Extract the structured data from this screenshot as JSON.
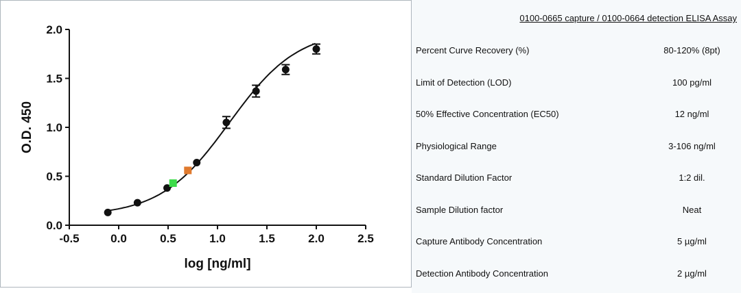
{
  "chart_data": {
    "type": "scatter",
    "xlabel": "log [ng/ml]",
    "ylabel": "O.D. 450",
    "xlim": [
      -0.5,
      2.5
    ],
    "ylim": [
      0.0,
      2.0
    ],
    "xticks": [
      "-0.5",
      "0.0",
      "0.5",
      "1.0",
      "1.5",
      "2.0",
      "2.5"
    ],
    "yticks": [
      "0.0",
      "0.5",
      "1.0",
      "1.5",
      "2.0"
    ],
    "grid": false,
    "series": [
      {
        "marker": "circle",
        "color": "#111111",
        "x": [
          -0.11,
          0.19,
          0.49,
          0.79,
          1.09,
          1.39,
          1.69,
          2.0
        ],
        "y": [
          0.13,
          0.23,
          0.38,
          0.64,
          1.05,
          1.37,
          1.59,
          1.8
        ],
        "err": [
          0.0,
          0.0,
          0.0,
          0.0,
          0.06,
          0.06,
          0.05,
          0.05
        ]
      }
    ],
    "fit_curve": {
      "type": "4PL sigmoid",
      "color": "#111111"
    },
    "highlight_points": [
      {
        "x": 0.55,
        "y": 0.43,
        "color": "#3ddc4a",
        "marker": "square"
      },
      {
        "x": 0.7,
        "y": 0.56,
        "color": "#e07a2e",
        "marker": "square"
      }
    ]
  },
  "table": {
    "title": "0100-0665 capture / 0100-0664 detection ELISA Assay",
    "rows": [
      {
        "label": "Percent Curve Recovery (%)",
        "value": "80-120% (8pt)"
      },
      {
        "label": "Limit of Detection (LOD)",
        "value": "100 pg/ml"
      },
      {
        "label": "50% Effective Concentration (EC50)",
        "value": "12 ng/ml"
      },
      {
        "label": "Physiological Range",
        "value": "3-106 ng/ml"
      },
      {
        "label": "Standard Dilution Factor",
        "value": "1:2 dil."
      },
      {
        "label": "Sample Dilution factor",
        "value": "Neat"
      },
      {
        "label": "Capture Antibody Concentration",
        "value": "5 µg/ml"
      },
      {
        "label": "Detection Antibody Concentration",
        "value": "2 µg/ml"
      }
    ]
  }
}
